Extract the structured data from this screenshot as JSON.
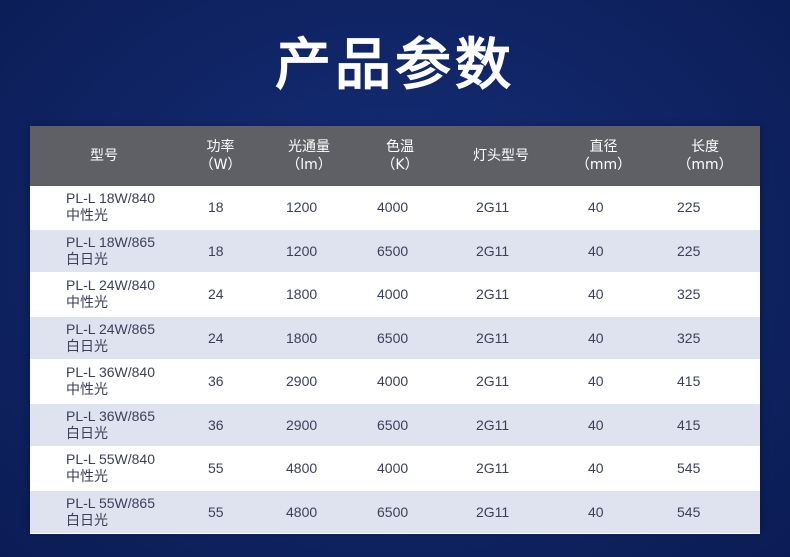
{
  "title": "产品参数",
  "table": {
    "headers": [
      {
        "line1": "型号",
        "line2": ""
      },
      {
        "line1": "功率",
        "line2": "（W）"
      },
      {
        "line1": "光通量",
        "line2": "（lm）"
      },
      {
        "line1": "色温",
        "line2": "（K）"
      },
      {
        "line1": "灯头型号",
        "line2": ""
      },
      {
        "line1": "直径",
        "line2": "（mm）"
      },
      {
        "line1": "长度",
        "line2": "（mm）"
      }
    ],
    "rows": [
      {
        "model": "PL-L 18W/840",
        "desc": "中性光",
        "power": "18",
        "flux": "1200",
        "cct": "4000",
        "base": "2G11",
        "diameter": "40",
        "length": "225"
      },
      {
        "model": "PL-L 18W/865",
        "desc": "白日光",
        "power": "18",
        "flux": "1200",
        "cct": "6500",
        "base": "2G11",
        "diameter": "40",
        "length": "225"
      },
      {
        "model": "PL-L 24W/840",
        "desc": "中性光",
        "power": "24",
        "flux": "1800",
        "cct": "4000",
        "base": "2G11",
        "diameter": "40",
        "length": "325"
      },
      {
        "model": "PL-L 24W/865",
        "desc": "白日光",
        "power": "24",
        "flux": "1800",
        "cct": "6500",
        "base": "2G11",
        "diameter": "40",
        "length": "325"
      },
      {
        "model": "PL-L 36W/840",
        "desc": "中性光",
        "power": "36",
        "flux": "2900",
        "cct": "4000",
        "base": "2G11",
        "diameter": "40",
        "length": "415"
      },
      {
        "model": "PL-L 36W/865",
        "desc": "白日光",
        "power": "36",
        "flux": "2900",
        "cct": "6500",
        "base": "2G11",
        "diameter": "40",
        "length": "415"
      },
      {
        "model": "PL-L 55W/840",
        "desc": "中性光",
        "power": "55",
        "flux": "4800",
        "cct": "4000",
        "base": "2G11",
        "diameter": "40",
        "length": "545"
      },
      {
        "model": "PL-L 55W/865",
        "desc": "白日光",
        "power": "55",
        "flux": "4800",
        "cct": "6500",
        "base": "2G11",
        "diameter": "40",
        "length": "545"
      }
    ]
  },
  "colors": {
    "background": "#112668",
    "header_bg": "#5f6065",
    "row_alt_bg": "#dfe3ef",
    "text": "#3a3f5a"
  }
}
